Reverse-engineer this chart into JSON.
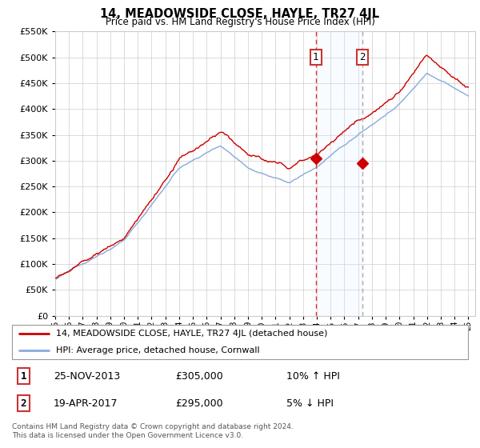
{
  "title": "14, MEADOWSIDE CLOSE, HAYLE, TR27 4JL",
  "subtitle": "Price paid vs. HM Land Registry's House Price Index (HPI)",
  "legend_line1": "14, MEADOWSIDE CLOSE, HAYLE, TR27 4JL (detached house)",
  "legend_line2": "HPI: Average price, detached house, Cornwall",
  "transaction1_date": "25-NOV-2013",
  "transaction1_price": "£305,000",
  "transaction1_hpi": "10% ↑ HPI",
  "transaction2_date": "19-APR-2017",
  "transaction2_price": "£295,000",
  "transaction2_hpi": "5% ↓ HPI",
  "footer": "Contains HM Land Registry data © Crown copyright and database right 2024.\nThis data is licensed under the Open Government Licence v3.0.",
  "property_color": "#cc0000",
  "hpi_color": "#88aadd",
  "highlight_color": "#ddeeff",
  "vline1_color": "#dd3333",
  "vline2_color": "#aaaaaa",
  "ylim_min": 0,
  "ylim_max": 550000,
  "ytick_step": 50000,
  "x_start_year": 1995,
  "x_end_year": 2025,
  "transaction1_year": 2013.92,
  "transaction2_year": 2017.3,
  "t1_price": 305000,
  "t2_price": 295000
}
